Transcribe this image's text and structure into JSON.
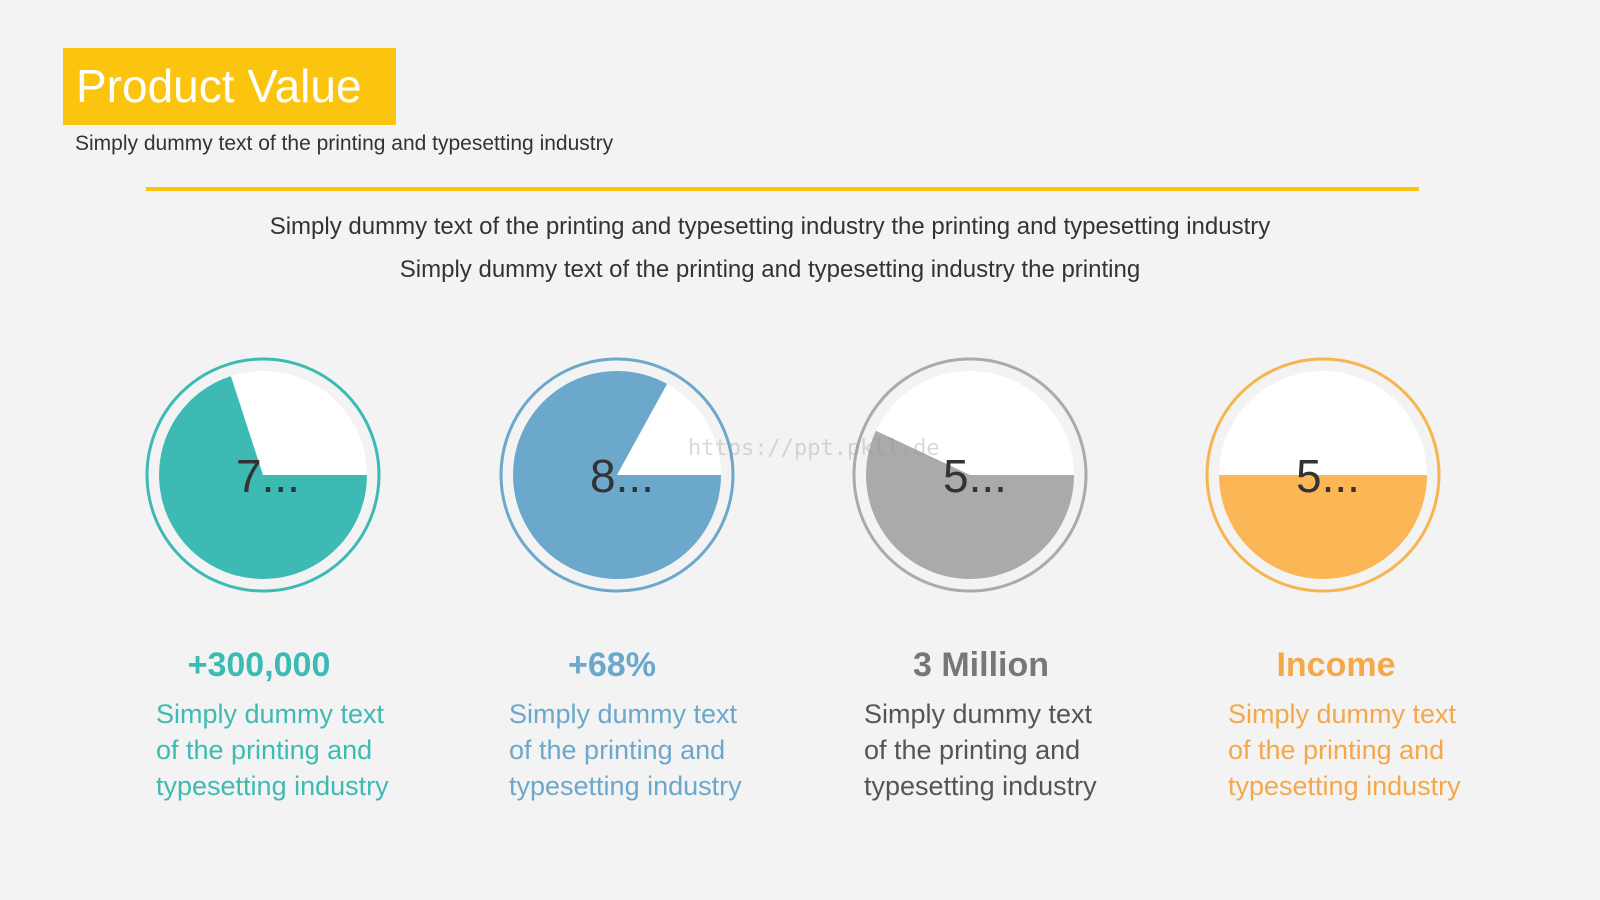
{
  "header": {
    "title": "Product Value",
    "subtitle": "Simply dummy text of the printing and typesetting industry"
  },
  "intro": {
    "line1": "Simply dummy text of the printing and typesetting industry the printing and typesetting industry",
    "line2": "Simply dummy text of the printing and typesetting industry the printing"
  },
  "watermark": "https://ppt.pkll.de",
  "colors": {
    "accent": "#fbc40f",
    "teal": "#3ebab5",
    "blue": "#6ba8cb",
    "gray": "#aaaaaa",
    "orange": "#fbb756"
  },
  "chart_data": {
    "type": "pie",
    "series": [
      {
        "value_label": "7...",
        "percent": 70,
        "stat": "+300,000",
        "color": "#3ebab5",
        "ring_color": "#3ebab5",
        "desc": [
          "Simply dummy text",
          "of the printing and",
          "typesetting industry"
        ]
      },
      {
        "value_label": "8...",
        "percent": 83,
        "stat": "+68%",
        "color": "#6ba8cb",
        "ring_color": "#6ba8cb",
        "desc": [
          "Simply dummy text",
          "of the printing and",
          "typesetting industry"
        ]
      },
      {
        "value_label": "5...",
        "percent": 57,
        "stat": "3 Million",
        "color": "#aaaaaa",
        "ring_color": "#aaaaaa",
        "stat_color": "#777777",
        "desc_color": "#555555",
        "desc": [
          "Simply dummy text",
          "of the printing and",
          "typesetting industry"
        ]
      },
      {
        "value_label": "5...",
        "percent": 50,
        "stat": "Income",
        "color": "#fbb756",
        "ring_color": "#f7b54f",
        "stat_color": "#f4a84a",
        "desc_color": "#f4a84a",
        "desc": [
          "Simply dummy text",
          "of the printing and",
          "typesetting industry"
        ]
      }
    ]
  }
}
